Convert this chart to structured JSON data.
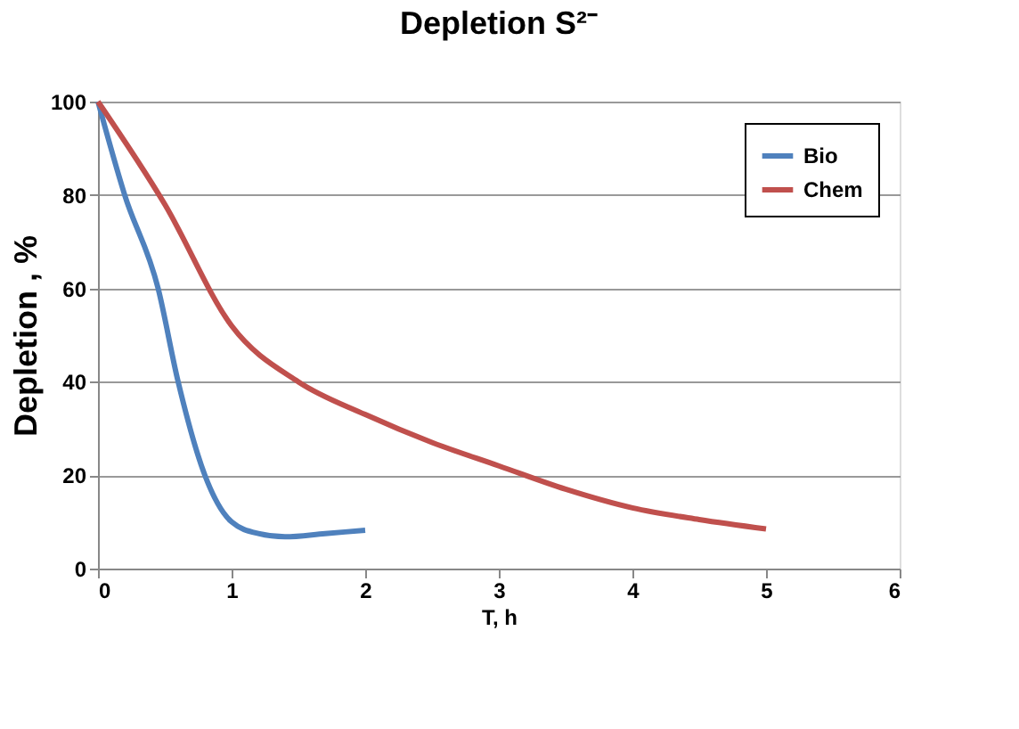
{
  "chart_data": {
    "type": "line",
    "title": "Depletion  S²⁻",
    "xlabel": "T, h",
    "ylabel": "Depletion , %",
    "series": [
      {
        "name": "Bio",
        "color": "#4f81bd",
        "x": [
          0,
          0.2,
          0.45,
          0.6,
          0.8,
          1.0,
          1.2,
          1.4,
          1.7,
          2.0
        ],
        "values": [
          100,
          80,
          60,
          40,
          20,
          10,
          7.5,
          6.8,
          7.5,
          8.2
        ]
      },
      {
        "name": "Chem",
        "color": "#c0504d",
        "x": [
          0,
          0.5,
          1.0,
          1.5,
          2,
          2.5,
          3,
          3.5,
          4,
          4.5,
          5
        ],
        "values": [
          100,
          78,
          52,
          40,
          33,
          27,
          22,
          17,
          13,
          10.5,
          8.5
        ]
      }
    ],
    "xlim": [
      0,
      6
    ],
    "xticks": [
      0,
      1,
      2,
      3,
      4,
      5,
      6
    ],
    "ylim": [
      0,
      100
    ],
    "yticks": [
      0,
      20,
      40,
      60,
      80,
      100
    ],
    "grid": "y",
    "legend": "top right",
    "marker": "none",
    "line_style": "solid"
  }
}
